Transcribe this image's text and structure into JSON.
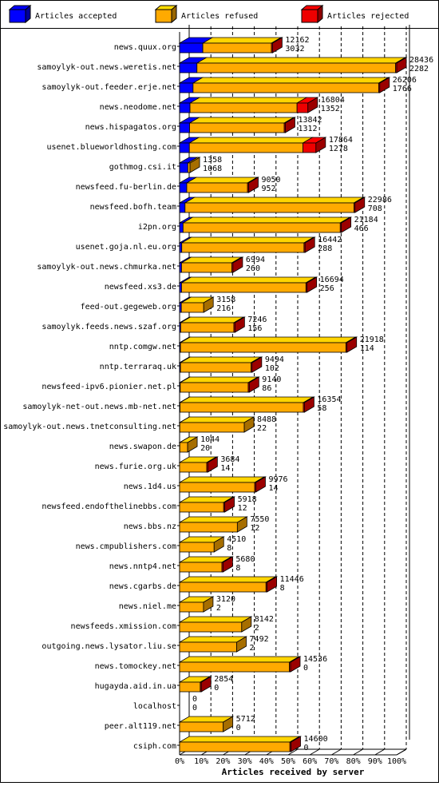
{
  "chart_data": {
    "type": "bar",
    "orientation": "horizontal",
    "stacked": true,
    "x_label": "Articles received by server",
    "categories": [
      "news.quux.org",
      "samoylyk-out.news.weretis.net",
      "samoylyk-out.feeder.erje.net",
      "news.neodome.net",
      "news.hispagatos.org",
      "usenet.blueworldhosting.com",
      "gothmog.csi.it",
      "newsfeed.fu-berlin.de",
      "newsfeed.bofh.team",
      "i2pn.org",
      "usenet.goja.nl.eu.org",
      "samoylyk-out.news.chmurka.net",
      "newsfeed.xs3.de",
      "feed-out.gegeweb.org",
      "samoylyk.feeds.news.szaf.org",
      "nntp.comgw.net",
      "nntp.terraraq.uk",
      "newsfeed-ipv6.pionier.net.pl",
      "samoylyk-net-out.news.mb-net.net",
      "samoylyk-out.news.tnetconsulting.net",
      "news.swapon.de",
      "news.furie.org.uk",
      "news.1d4.us",
      "newsfeed.endofthelinebbs.com",
      "news.bbs.nz",
      "news.cmpublishers.com",
      "news.nntp4.net",
      "news.cgarbs.de",
      "news.niel.me",
      "newsfeeds.xmission.com",
      "outgoing.news.lysator.liu.se",
      "news.tomockey.net",
      "hugayda.aid.in.ua",
      "localhost",
      "peer.alt119.net",
      "csiph.com"
    ],
    "received": [
      12162,
      28436,
      26206,
      16804,
      13842,
      17864,
      1358,
      9050,
      22986,
      21184,
      16442,
      6994,
      16694,
      3158,
      7246,
      21918,
      9494,
      9140,
      16354,
      8488,
      1044,
      3684,
      9976,
      5918,
      7550,
      4510,
      5680,
      11446,
      3120,
      8142,
      7492,
      14536,
      2854,
      0,
      5712,
      14600
    ],
    "accepted": [
      3032,
      2282,
      1766,
      1352,
      1312,
      1278,
      1068,
      952,
      708,
      466,
      288,
      260,
      256,
      216,
      156,
      114,
      102,
      86,
      58,
      22,
      20,
      14,
      14,
      12,
      12,
      8,
      8,
      8,
      2,
      2,
      2,
      0,
      0,
      0,
      0,
      0
    ],
    "series": [
      {
        "name": "Articles accepted",
        "color": "#0000ff",
        "values": [
          10.7,
          8.0,
          6.2,
          4.8,
          4.6,
          4.5,
          3.8,
          3.3,
          2.5,
          1.6,
          1.0,
          0.9,
          0.9,
          0.8,
          0.5,
          0.4,
          0.4,
          0.3,
          0.2,
          0.1,
          0.1,
          0,
          0,
          0,
          0,
          0,
          0,
          0,
          0,
          0,
          0,
          0,
          0,
          0,
          0,
          0
        ]
      },
      {
        "name": "Articles refused",
        "color": "#ffaa00",
        "values": [
          31.6,
          91.5,
          85.5,
          49.3,
          43.6,
          52.3,
          1.0,
          28.0,
          77.8,
          72.4,
          56.3,
          23.2,
          57.3,
          10.3,
          24.5,
          76.2,
          32.5,
          31.3,
          56.8,
          29.7,
          3.6,
          12.5,
          34.6,
          20.3,
          26.6,
          15.9,
          19.5,
          39.8,
          11.0,
          28.6,
          26.3,
          50.6,
          9.5,
          0,
          20.1,
          50.8
        ]
      },
      {
        "name": "Articles rejected",
        "color": "#ee0000",
        "values": [
          0.5,
          0.5,
          0.5,
          5,
          0.5,
          6,
          0,
          0.5,
          0.5,
          0.5,
          0.5,
          0.5,
          0.5,
          0,
          0.5,
          0.5,
          0.5,
          0.5,
          0.5,
          0,
          0,
          0.5,
          0.5,
          0.5,
          0,
          0,
          0.5,
          0.5,
          0,
          0,
          0,
          0.5,
          0.5,
          0,
          0,
          0.5
        ]
      }
    ],
    "xlim": [
      0,
      100
    ],
    "xticks": [
      {
        "value": 0,
        "label": "0%"
      },
      {
        "value": 10,
        "label": "10%"
      },
      {
        "value": 20,
        "label": "20%"
      },
      {
        "value": 30,
        "label": "30%"
      },
      {
        "value": 40,
        "label": "40%"
      },
      {
        "value": 50,
        "label": "50%"
      },
      {
        "value": 60,
        "label": "60%"
      },
      {
        "value": 70,
        "label": "70%"
      },
      {
        "value": 80,
        "label": "80%"
      },
      {
        "value": 90,
        "label": "90%"
      },
      {
        "value": 100,
        "label": "100%"
      }
    ],
    "grid": true
  }
}
